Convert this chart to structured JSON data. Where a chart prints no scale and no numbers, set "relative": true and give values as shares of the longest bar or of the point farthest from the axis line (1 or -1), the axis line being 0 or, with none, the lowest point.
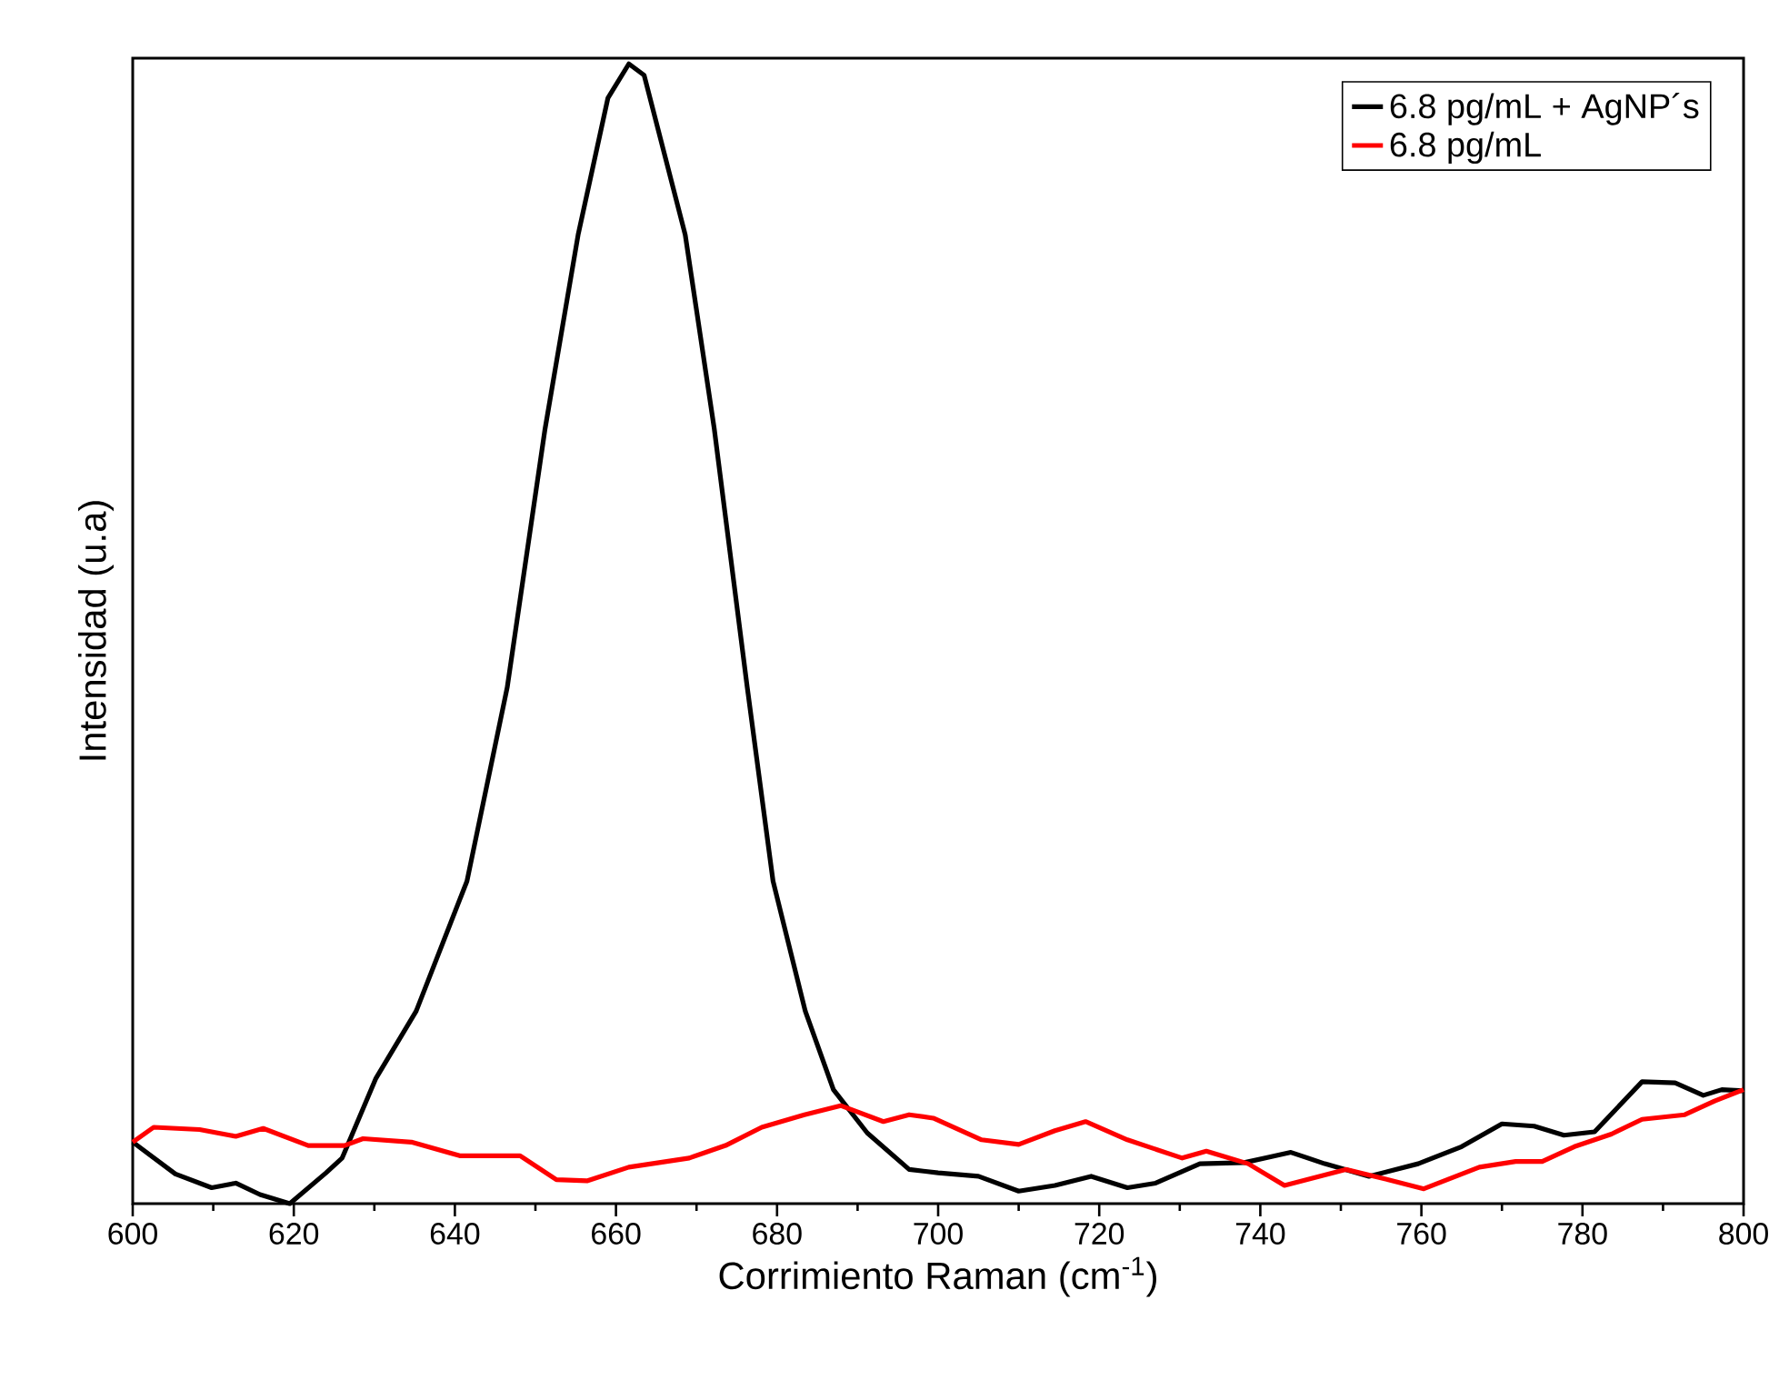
{
  "chart_data": {
    "type": "line",
    "relative": true,
    "xlabel": "Corrimiento Raman (cm$^{-1}$)",
    "ylabel": "Intensidad (u.a)",
    "xlim": [
      600,
      800
    ],
    "xticks": [
      600,
      620,
      640,
      660,
      680,
      700,
      720,
      740,
      760,
      780,
      800
    ],
    "legend": "top right",
    "series": [
      {
        "name": "6.8 pg/mL + AgNP´s",
        "color": "#000000",
        "x": [
          600,
          605.3,
          609.8,
          612.8,
          615.8,
          619.5,
          624,
          626,
          630.2,
          635.2,
          641.5,
          646.5,
          651.2,
          655.3,
          659,
          661.6,
          663.5,
          668.6,
          672.2,
          676.3,
          679.5,
          683.5,
          687,
          691.2,
          696.4,
          700,
          705,
          710,
          714.5,
          719,
          723.5,
          727,
          732.5,
          738,
          743.8,
          748,
          753.5,
          759.6,
          765,
          770,
          774,
          777.7,
          781.5,
          787.4,
          791.5,
          795,
          797.3,
          800
        ],
        "values": [
          0.054,
          0.026,
          0.014,
          0.018,
          0.008,
          0,
          0.027,
          0.04,
          0.11,
          0.169,
          0.283,
          0.453,
          0.68,
          0.85,
          0.97,
          1.0,
          0.99,
          0.85,
          0.68,
          0.453,
          0.283,
          0.169,
          0.1,
          0.062,
          0.03,
          0.027,
          0.024,
          0.011,
          0.016,
          0.024,
          0.014,
          0.018,
          0.035,
          0.036,
          0.045,
          0.035,
          0.024,
          0.035,
          0.05,
          0.07,
          0.068,
          0.06,
          0.063,
          0.107,
          0.106,
          0.095,
          0.1,
          0.099
        ]
      },
      {
        "name": "6.8 pg/mL",
        "color": "#ff0000",
        "x": [
          600,
          602.6,
          608.3,
          612.8,
          616.2,
          621.8,
          626.3,
          628.6,
          634.6,
          640.6,
          648.1,
          652.6,
          656.4,
          661.6,
          669.1,
          673.6,
          678.1,
          683.4,
          687.9,
          693.2,
          696.4,
          699.4,
          705.4,
          710,
          714.5,
          718.3,
          723.5,
          730.3,
          733.3,
          738.5,
          743,
          750.6,
          755.9,
          760.3,
          767.2,
          771.7,
          775,
          779,
          783.6,
          787.4,
          792.7,
          796.4,
          800
        ],
        "values": [
          0.054,
          0.067,
          0.065,
          0.059,
          0.066,
          0.051,
          0.051,
          0.057,
          0.054,
          0.042,
          0.042,
          0.021,
          0.02,
          0.032,
          0.04,
          0.051,
          0.067,
          0.078,
          0.086,
          0.072,
          0.078,
          0.075,
          0.056,
          0.052,
          0.064,
          0.072,
          0.056,
          0.04,
          0.046,
          0.035,
          0.016,
          0.03,
          0.021,
          0.013,
          0.032,
          0.037,
          0.037,
          0.05,
          0.061,
          0.074,
          0.078,
          0.09,
          0.1
        ]
      }
    ]
  }
}
